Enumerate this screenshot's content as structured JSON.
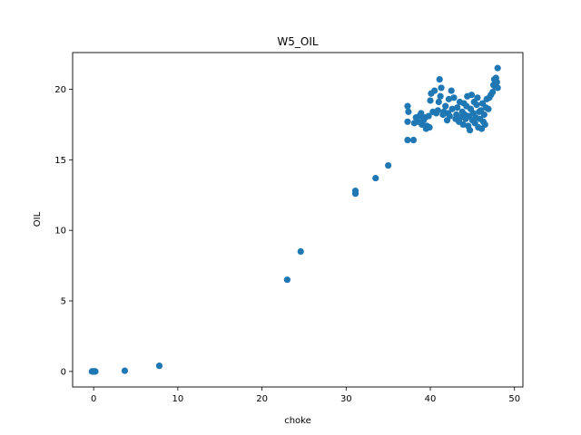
{
  "chart_data": {
    "type": "scatter",
    "title": "W5_OIL",
    "xlabel": "choke",
    "ylabel": "OIL",
    "xlim": [
      -2.5,
      51
    ],
    "ylim": [
      -1.1,
      22.6
    ],
    "xticks": [
      0,
      10,
      20,
      30,
      40,
      50
    ],
    "yticks": [
      0,
      5,
      10,
      15,
      20
    ],
    "grid": false,
    "legend": "none",
    "marker_color": "#1f77b4",
    "series": [
      {
        "points": [
          [
            -0.2,
            0.0
          ],
          [
            -0.1,
            0.0
          ],
          [
            0.0,
            0.0
          ],
          [
            0.1,
            0.0
          ],
          [
            0.2,
            0.0
          ],
          [
            3.7,
            0.05
          ],
          [
            7.8,
            0.4
          ],
          [
            23.0,
            6.5
          ],
          [
            24.6,
            8.5
          ],
          [
            31.1,
            12.6
          ],
          [
            31.1,
            12.8
          ],
          [
            33.5,
            13.7
          ],
          [
            35.0,
            14.6
          ],
          [
            37.3,
            16.4
          ],
          [
            38.0,
            16.4
          ],
          [
            37.3,
            17.7
          ],
          [
            37.4,
            18.4
          ],
          [
            37.3,
            18.8
          ],
          [
            38.1,
            17.6
          ],
          [
            38.3,
            18.0
          ],
          [
            38.5,
            17.7
          ],
          [
            38.7,
            18.1
          ],
          [
            38.9,
            18.3
          ],
          [
            39.0,
            17.5
          ],
          [
            39.2,
            17.8
          ],
          [
            39.4,
            18.0
          ],
          [
            39.5,
            17.2
          ],
          [
            39.6,
            17.4
          ],
          [
            39.8,
            18.1
          ],
          [
            39.9,
            17.3
          ],
          [
            40.0,
            19.2
          ],
          [
            40.1,
            19.7
          ],
          [
            40.3,
            18.4
          ],
          [
            40.5,
            19.9
          ],
          [
            40.7,
            18.3
          ],
          [
            40.9,
            18.5
          ],
          [
            41.0,
            19.1
          ],
          [
            41.1,
            20.7
          ],
          [
            41.2,
            19.5
          ],
          [
            41.3,
            20.1
          ],
          [
            41.5,
            18.2
          ],
          [
            41.6,
            18.4
          ],
          [
            41.8,
            18.8
          ],
          [
            42.0,
            17.8
          ],
          [
            42.1,
            18.3
          ],
          [
            42.2,
            19.3
          ],
          [
            42.3,
            18.1
          ],
          [
            42.5,
            19.9
          ],
          [
            42.6,
            18.6
          ],
          [
            42.8,
            19.4
          ],
          [
            43.0,
            17.9
          ],
          [
            43.1,
            18.2
          ],
          [
            43.2,
            18.7
          ],
          [
            43.4,
            17.7
          ],
          [
            43.5,
            19.1
          ],
          [
            43.6,
            18.0
          ],
          [
            43.8,
            18.4
          ],
          [
            43.9,
            17.5
          ],
          [
            44.0,
            19.0
          ],
          [
            44.1,
            18.2
          ],
          [
            44.2,
            17.9
          ],
          [
            44.3,
            18.8
          ],
          [
            44.4,
            19.5
          ],
          [
            44.5,
            17.4
          ],
          [
            44.6,
            18.1
          ],
          [
            44.7,
            17.1
          ],
          [
            44.8,
            18.6
          ],
          [
            44.9,
            19.6
          ],
          [
            45.0,
            17.8
          ],
          [
            45.1,
            18.3
          ],
          [
            45.2,
            19.1
          ],
          [
            45.3,
            17.6
          ],
          [
            45.4,
            18.0
          ],
          [
            45.5,
            18.9
          ],
          [
            45.6,
            19.4
          ],
          [
            45.7,
            17.3
          ],
          [
            45.8,
            18.4
          ],
          [
            45.9,
            17.9
          ],
          [
            46.0,
            18.5
          ],
          [
            46.1,
            17.2
          ],
          [
            46.2,
            19.0
          ],
          [
            46.3,
            17.7
          ],
          [
            46.4,
            18.2
          ],
          [
            46.5,
            17.5
          ],
          [
            46.6,
            18.7
          ],
          [
            46.7,
            19.3
          ],
          [
            46.9,
            18.6
          ],
          [
            47.0,
            19.4
          ],
          [
            47.2,
            19.6
          ],
          [
            47.4,
            19.8
          ],
          [
            47.5,
            20.3
          ],
          [
            47.6,
            20.7
          ],
          [
            47.7,
            20.2
          ],
          [
            47.8,
            20.8
          ],
          [
            47.9,
            20.5
          ],
          [
            48.0,
            21.5
          ],
          [
            48.0,
            20.1
          ]
        ]
      }
    ]
  }
}
